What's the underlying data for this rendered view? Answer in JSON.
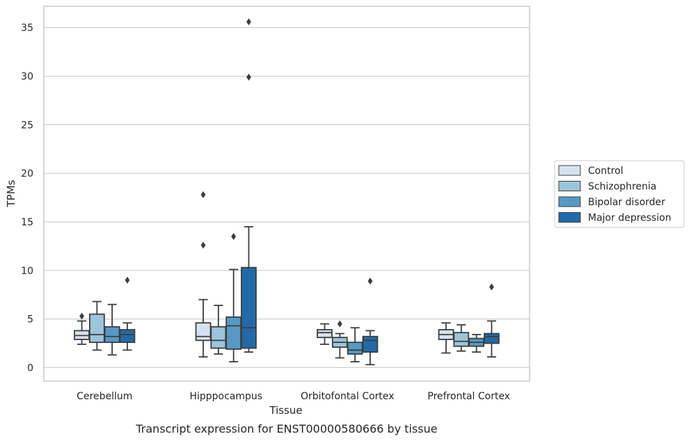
{
  "caption": "Transcript expression for ENST00000580666 by tissue",
  "chart_data": {
    "type": "box",
    "title": "",
    "xlabel": "Tissue",
    "ylabel": "TPMs",
    "ylim": [
      -1.4,
      37.2
    ],
    "yticks": [
      0,
      5,
      10,
      15,
      20,
      25,
      30,
      35
    ],
    "grid": true,
    "legend_position": "center-right outside",
    "categories": [
      "Cerebellum",
      "Hipppocampus",
      "Orbitofontal Cortex",
      "Prefrontal Cortex"
    ],
    "series": [
      {
        "name": "Control",
        "color": "#d5e3f1",
        "boxes": [
          {
            "whislo": 2.4,
            "q1": 2.9,
            "med": 3.3,
            "q3": 3.8,
            "whishi": 4.8,
            "fliers": [
              5.3
            ]
          },
          {
            "whislo": 1.1,
            "q1": 2.8,
            "med": 3.2,
            "q3": 4.6,
            "whishi": 7.0,
            "fliers": [
              12.6,
              17.8
            ]
          },
          {
            "whislo": 2.4,
            "q1": 3.1,
            "med": 3.6,
            "q3": 3.9,
            "whishi": 4.5,
            "fliers": []
          },
          {
            "whislo": 1.5,
            "q1": 2.9,
            "med": 3.4,
            "q3": 3.9,
            "whishi": 4.6,
            "fliers": []
          }
        ]
      },
      {
        "name": "Schizophrenia",
        "color": "#9dc4dc",
        "boxes": [
          {
            "whislo": 1.8,
            "q1": 2.6,
            "med": 3.4,
            "q3": 5.5,
            "whishi": 6.8,
            "fliers": []
          },
          {
            "whislo": 1.4,
            "q1": 2.0,
            "med": 2.8,
            "q3": 4.2,
            "whishi": 6.4,
            "fliers": []
          },
          {
            "whislo": 1.0,
            "q1": 2.1,
            "med": 2.6,
            "q3": 3.1,
            "whishi": 3.5,
            "fliers": [
              4.5
            ]
          },
          {
            "whislo": 1.7,
            "q1": 2.2,
            "med": 2.7,
            "q3": 3.6,
            "whishi": 4.4,
            "fliers": []
          }
        ]
      },
      {
        "name": "Bipolar disorder",
        "color": "#5799c5",
        "boxes": [
          {
            "whislo": 1.3,
            "q1": 2.6,
            "med": 3.2,
            "q3": 4.2,
            "whishi": 6.5,
            "fliers": []
          },
          {
            "whislo": 0.6,
            "q1": 1.9,
            "med": 4.3,
            "q3": 5.2,
            "whishi": 10.1,
            "fliers": [
              13.5
            ]
          },
          {
            "whislo": 0.6,
            "q1": 1.4,
            "med": 1.8,
            "q3": 2.6,
            "whishi": 4.1,
            "fliers": []
          },
          {
            "whislo": 1.6,
            "q1": 2.2,
            "med": 2.6,
            "q3": 3.0,
            "whishi": 3.4,
            "fliers": []
          }
        ]
      },
      {
        "name": "Major depression",
        "color": "#2369a7",
        "boxes": [
          {
            "whislo": 1.8,
            "q1": 2.6,
            "med": 3.4,
            "q3": 3.9,
            "whishi": 4.6,
            "fliers": [
              9.0
            ]
          },
          {
            "whislo": 1.6,
            "q1": 2.0,
            "med": 4.1,
            "q3": 10.3,
            "whishi": 14.5,
            "fliers": [
              29.9,
              35.6
            ]
          },
          {
            "whislo": 0.3,
            "q1": 1.6,
            "med": 2.8,
            "q3": 3.2,
            "whishi": 3.8,
            "fliers": [
              8.9
            ]
          },
          {
            "whislo": 1.1,
            "q1": 2.5,
            "med": 3.2,
            "q3": 3.5,
            "whishi": 4.8,
            "fliers": [
              8.3
            ]
          }
        ]
      }
    ]
  }
}
